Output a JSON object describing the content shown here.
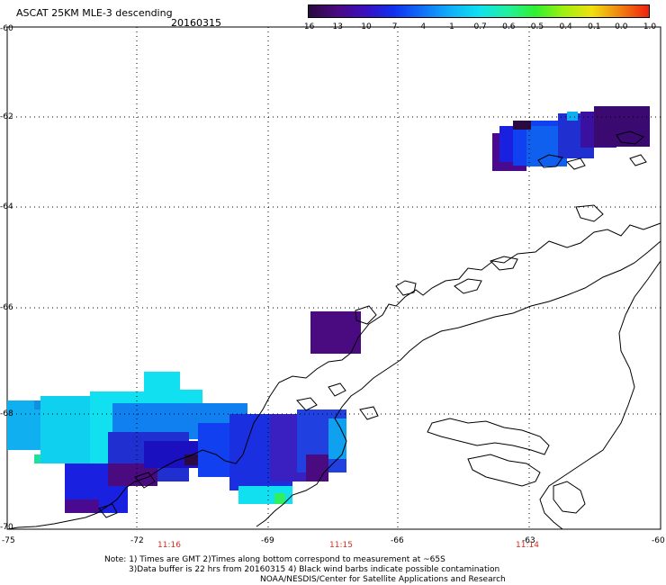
{
  "header": {
    "title": "ASCAT 25KM MLE-3 descending",
    "date": "20160315"
  },
  "colorbar": {
    "labels": [
      "-16",
      "-13",
      "-10",
      "-7",
      "-4",
      "-1",
      "-0.7",
      "-0.6",
      "-0.5",
      "-0.4",
      "-0.1",
      "0.0",
      "1.0"
    ],
    "colors": [
      "#2a0a40",
      "#4a0a80",
      "#3a10c0",
      "#1030f0",
      "#1070f8",
      "#10b0f8",
      "#10e0f0",
      "#20f0a0",
      "#30f030",
      "#a0f010",
      "#f0e010",
      "#f08010",
      "#f02010"
    ]
  },
  "axes": {
    "lon_labels": [
      "-75",
      "-72",
      "-69",
      "-66",
      "-63",
      "-60"
    ],
    "lat_labels": [
      "-60",
      "-62",
      "-64",
      "-66",
      "-68",
      "-70"
    ]
  },
  "time_labels": [
    "11:16",
    "11:15",
    "11:14"
  ],
  "notes": {
    "line1": "Note: 1) Times are GMT 2)Times along bottom correspond to measurement at ~65S",
    "line2": "3)Data buffer is 22 hrs from 20160315 4) Black wind barbs indicate possible contamination",
    "line3": "NOAA/NESDIS/Center for Satellite Applications and Research"
  }
}
